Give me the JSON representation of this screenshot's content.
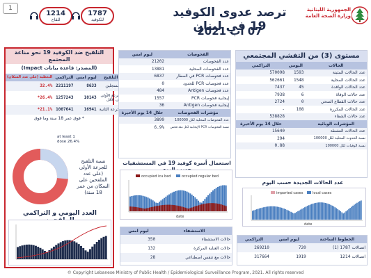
{
  "header": {
    "page_number": "1",
    "title": "ترصد عدوى الكوفيد 19 في لبنان",
    "date": "07 آب 2021",
    "ministry_line1": "الجمهورية اللبنانية",
    "ministry_line2": "وزارة الصحة العامة",
    "hotline_1": {
      "number": "1214",
      "label": "للقاح"
    },
    "hotline_2": {
      "number": "1787",
      "label": "للكوفيد"
    }
  },
  "level_panel": {
    "title": "مستوى (3) من التفشي المجتمعي",
    "columns": [
      "الحالات",
      "اليومي",
      "التراكمي"
    ],
    "rows": [
      {
        "label": "عدد الحالات المثبتة",
        "daily": "1593",
        "cumulative": "570098"
      },
      {
        "label": "عدد الحالات المحلية",
        "daily": "1548",
        "cumulative": "562661"
      },
      {
        "label": "عدد الحالات الوافدة",
        "daily": "45",
        "cumulative": "7437"
      },
      {
        "label": "عدد حالات الوفاة",
        "daily": "6",
        "cumulative": "7938"
      },
      {
        "label": "عدد حالات القطاع الصحي",
        "daily": "0",
        "cumulative": "2724"
      },
      {
        "label": "عدد الحالات المكررة",
        "daily": "108",
        "cumulative": "-"
      },
      {
        "label": "عدد حالات الشفاء",
        "daily": "",
        "cumulative": "538828"
      }
    ],
    "indicators_title": "المؤشرات الوبائية",
    "indicators_sub": "خلال 14 يوم الأخيرة",
    "indicators": [
      {
        "label": "عدد الحالات النشطة",
        "value": "15640"
      },
      {
        "label": "نسبة الحدوث المحلية لكل 100000",
        "value": "294"
      },
      {
        "label": "نسبة الوفيات لكل 100000",
        "value": "0.88"
      }
    ]
  },
  "tests_panel": {
    "columns": [
      "الفحوصات",
      "ليوم امس"
    ],
    "rows": [
      {
        "label": "عدد الفحوصات",
        "value": "21202"
      },
      {
        "label": "عدد الفحوصات المحلية",
        "value": "13881"
      },
      {
        "label": "عدد فحوصات PCR في المطار",
        "value": "6837"
      },
      {
        "label": "عدد فحوصات PCR للحدود",
        "value": "0"
      },
      {
        "label": "عدد فحوصات Antigen",
        "value": "484"
      },
      {
        "label": "إيجابية فحوصات PCR",
        "value": "1557"
      },
      {
        "label": "إيجابية فحوصات Antigen",
        "value": "36"
      }
    ],
    "positivity_title": "مؤشرات الفحوصات",
    "positivity_sub": "خلال 14 يوم الأخيرة",
    "positivity_rows": [
      {
        "label": "عدد الفحوصات المحلية لكل 100000",
        "value": "3899"
      },
      {
        "label": "نسبة الفحوصات PCR الإيجابية لكل مئة فحص",
        "value": "6.9%"
      }
    ]
  },
  "vaccine_panel": {
    "title": "التلقيح ضد الكوفيد 19 نحو مناعة المجتمع",
    "subtitle": "(المصدر: قاعدة بيانات Impact)",
    "columns": [
      "التغطية (على عدد السكان)",
      "التراكمي",
      "ليوم امس",
      "التلقيح"
    ],
    "rows": [
      {
        "label": "المسجلين",
        "daily": "8633",
        "cumulative": "2211197",
        "coverage": "32.4%"
      },
      {
        "label": "الجرعة الأولى على الأقل",
        "daily": "10143",
        "cumulative": "1257243",
        "coverage": "*26.4%"
      },
      {
        "label": "الجرعة الثانية",
        "daily": "16941",
        "cumulative": "1007641",
        "coverage": "*21.1%"
      }
    ],
    "note": "* فوق عمر 18 سنة وما فوق",
    "donut_title": "نسبة التلقيح للجرعة الأولى (على عدد الملقحين على السكان من عمر 18 سنة)",
    "donut_label": "at least 1 dose 26.4%",
    "bottom_title": "العدد اليومي و التراكمي للملقحين"
  },
  "hospital_chart": {
    "title": "استعمال أسرة كوفيد 19 في المستشفيات حسب اليوم",
    "legend": [
      "occupied icu bed",
      "occupied regular bed"
    ],
    "x_label": "date"
  },
  "cases_chart": {
    "title": "عدد الحالات الجديدة حسب اليوم",
    "legend": [
      "imported cases",
      "local cases"
    ],
    "x_label": "date"
  },
  "beds_table": {
    "columns": [
      "الاستشفاء",
      "ليوم امس"
    ],
    "rows": [
      {
        "label": "حالات الاستشفاء",
        "value": "350"
      },
      {
        "label": "حالات العناية المركزة",
        "value": "132"
      },
      {
        "label": "حالات مع تنفس اصطناعي",
        "value": "28"
      }
    ]
  },
  "calls_table": {
    "columns": [
      "الخطوط الساخنة",
      "ليوم امس",
      "التراكمي"
    ],
    "rows": [
      {
        "label": "اتصالات 1787 (1)",
        "daily": "720",
        "cumulative": "269210"
      },
      {
        "label": "اتصالات 1214",
        "daily": "1919",
        "cumulative": "317664"
      }
    ]
  },
  "footer": "© Copyright Lebanese Ministry of Public Health / Epidemiological Surveillance Program, 2021. All rights reserved",
  "colors": {
    "accent": "#c8262e",
    "navy": "#1f2d4d",
    "header_bg": "#d9dff0"
  }
}
